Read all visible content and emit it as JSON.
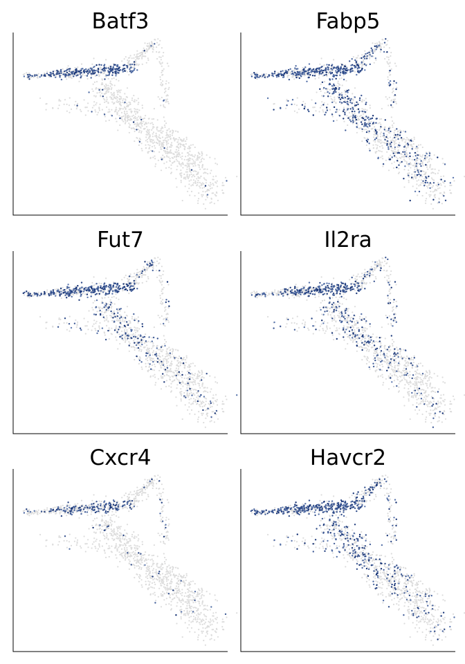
{
  "chart_data": [
    {
      "type": "scatter",
      "title": "Batf3",
      "xlabel": "",
      "ylabel": "",
      "grid": false,
      "legend": "none",
      "expression": {
        "branch_upper": 0.95,
        "branch_mid": 0.03,
        "branch_lower": 0.01,
        "right_arm": 0.06,
        "left_tail": 0.5
      }
    },
    {
      "type": "scatter",
      "title": "Fabp5",
      "xlabel": "",
      "ylabel": "",
      "grid": false,
      "legend": "none",
      "expression": {
        "branch_upper": 0.98,
        "branch_mid": 0.55,
        "branch_lower": 0.25,
        "right_arm": 0.35,
        "left_tail": 0.6
      }
    },
    {
      "type": "scatter",
      "title": "Fut7",
      "xlabel": "",
      "ylabel": "",
      "grid": false,
      "legend": "none",
      "expression": {
        "branch_upper": 0.9,
        "branch_mid": 0.3,
        "branch_lower": 0.1,
        "right_arm": 0.15,
        "left_tail": 0.6
      }
    },
    {
      "type": "scatter",
      "title": "Il2ra",
      "xlabel": "",
      "ylabel": "",
      "grid": false,
      "legend": "none",
      "expression": {
        "branch_upper": 0.9,
        "branch_mid": 0.3,
        "branch_lower": 0.12,
        "right_arm": 0.2,
        "left_tail": 0.4
      }
    },
    {
      "type": "scatter",
      "title": "Cxcr4",
      "xlabel": "",
      "ylabel": "",
      "grid": false,
      "legend": "none",
      "expression": {
        "branch_upper": 0.6,
        "branch_mid": 0.05,
        "branch_lower": 0.04,
        "right_arm": 0.1,
        "left_tail": 0.3
      }
    },
    {
      "type": "scatter",
      "title": "Havcr2",
      "xlabel": "",
      "ylabel": "",
      "grid": false,
      "legend": "none",
      "expression": {
        "branch_upper": 0.95,
        "branch_mid": 0.4,
        "branch_lower": 0.15,
        "right_arm": 0.3,
        "left_tail": 0.6
      }
    }
  ],
  "colors": {
    "background_cells": "#dcdcdc",
    "expression_low": "#8fa9d6",
    "expression_high": "#0d2a6e",
    "axis": "#000000"
  }
}
